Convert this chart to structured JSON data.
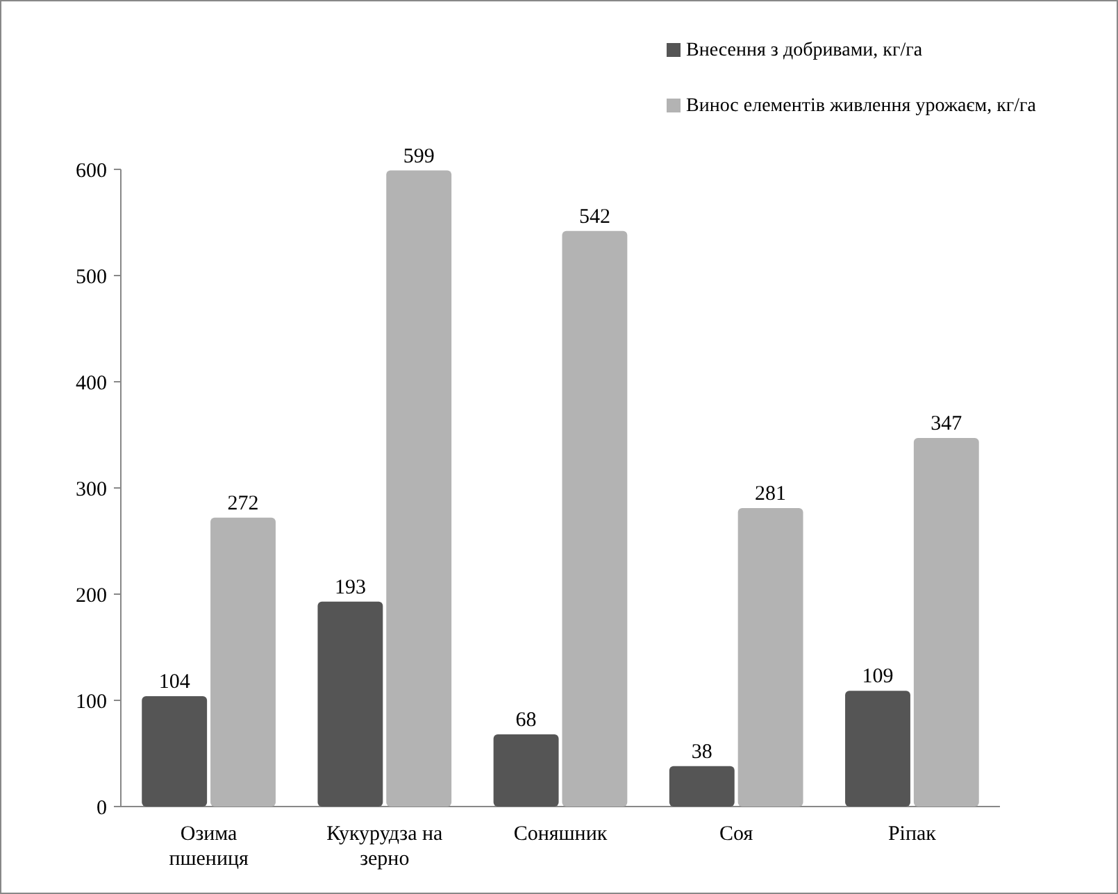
{
  "chart_data": {
    "type": "bar",
    "categories": [
      "Озима пшениця",
      "Кукурудза на зерно",
      "Соняшник",
      "Соя",
      "Ріпак"
    ],
    "series": [
      {
        "name": "Внесення з добривами, кг/га",
        "color": "#555555",
        "values": [
          104,
          193,
          68,
          38,
          109
        ]
      },
      {
        "name": "Винос елементів живлення урожаєм, кг/га",
        "color": "#b3b3b3",
        "values": [
          272,
          599,
          542,
          281,
          347
        ]
      }
    ],
    "ylim": [
      0,
      600
    ],
    "yticks": [
      0,
      100,
      200,
      300,
      400,
      500,
      600
    ],
    "data_labels": true,
    "legend": "top right",
    "grid": false
  }
}
